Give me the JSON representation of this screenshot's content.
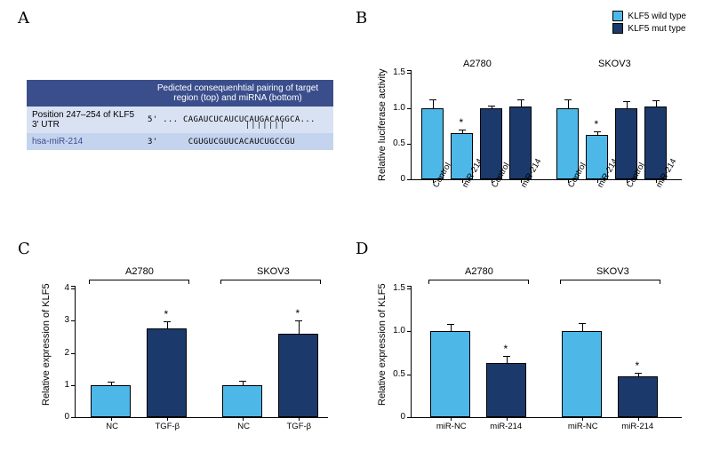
{
  "panelA": {
    "label": "A",
    "table": {
      "header_bg": "#3b4e8c",
      "row1_bg": "#d9e2f3",
      "row2_bg": "#c4d3ee",
      "text_color": "#ffffff",
      "header_col1": "",
      "header_col2": "Pedicted consequenhtial pairing of target region (top) and miRNA (bottom)",
      "row1_label": "Position 247–254 of KLF5 3' UTR",
      "row1_seq": "5' ... CAGAUCUCAUCUCAUGACAGGCA...",
      "row2_label": "hsa-miR-214",
      "row2_seq": "3'      CGUGUCGUUCACAUCUGCCGU",
      "pairing_marks": "| | | | | | | |"
    }
  },
  "panelB": {
    "label": "B",
    "legend": {
      "items": [
        {
          "label": "KLF5 wild type",
          "color": "#4db8e8"
        },
        {
          "label": "KLF5 mut type",
          "color": "#1b3a6b"
        }
      ]
    },
    "chart": {
      "y_label": "Relative luciferase activity",
      "y_max": 1.5,
      "y_ticks": [
        0,
        0.5,
        1.0,
        1.5
      ],
      "groups": [
        {
          "title": "A2780",
          "bars": [
            {
              "x": "Control",
              "val": 1.0,
              "err": 0.12,
              "color": "#4db8e8"
            },
            {
              "x": "miR-214",
              "val": 0.65,
              "err": 0.05,
              "color": "#4db8e8",
              "star": true
            },
            {
              "x": "Control",
              "val": 1.0,
              "err": 0.04,
              "color": "#1b3a6b"
            },
            {
              "x": "miR-214",
              "val": 1.03,
              "err": 0.1,
              "color": "#1b3a6b"
            }
          ]
        },
        {
          "title": "SKOV3",
          "bars": [
            {
              "x": "Control",
              "val": 1.0,
              "err": 0.12,
              "color": "#4db8e8"
            },
            {
              "x": "miR-214",
              "val": 0.62,
              "err": 0.06,
              "color": "#4db8e8",
              "star": true
            },
            {
              "x": "Control",
              "val": 1.0,
              "err": 0.1,
              "color": "#1b3a6b"
            },
            {
              "x": "miR-214",
              "val": 1.02,
              "err": 0.09,
              "color": "#1b3a6b"
            }
          ]
        }
      ]
    }
  },
  "panelC": {
    "label": "C",
    "chart": {
      "y_label": "Relative expression of KLF5",
      "y_max": 4,
      "y_ticks": [
        0,
        1,
        2,
        3,
        4
      ],
      "groups": [
        {
          "title": "A2780",
          "bars": [
            {
              "x": "NC",
              "val": 1.0,
              "err": 0.1,
              "color": "#4db8e8"
            },
            {
              "x": "TGF-β",
              "val": 2.75,
              "err": 0.22,
              "color": "#1b3a6b",
              "star": true
            }
          ]
        },
        {
          "title": "SKOV3",
          "bars": [
            {
              "x": "NC",
              "val": 1.0,
              "err": 0.12,
              "color": "#4db8e8"
            },
            {
              "x": "TGF-β",
              "val": 2.6,
              "err": 0.42,
              "color": "#1b3a6b",
              "star": true
            }
          ]
        }
      ]
    }
  },
  "panelD": {
    "label": "D",
    "chart": {
      "y_label": "Relative expression of KLF5",
      "y_max": 1.5,
      "y_ticks": [
        0,
        0.5,
        1.0,
        1.5
      ],
      "groups": [
        {
          "title": "A2780",
          "bars": [
            {
              "x": "miR-NC",
              "val": 1.0,
              "err": 0.09,
              "color": "#4db8e8"
            },
            {
              "x": "miR-214",
              "val": 0.63,
              "err": 0.08,
              "color": "#1b3a6b",
              "star": true
            }
          ]
        },
        {
          "title": "SKOV3",
          "bars": [
            {
              "x": "miR-NC",
              "val": 1.0,
              "err": 0.1,
              "color": "#4db8e8"
            },
            {
              "x": "miR-214",
              "val": 0.48,
              "err": 0.04,
              "color": "#1b3a6b",
              "star": true
            }
          ]
        }
      ]
    }
  }
}
